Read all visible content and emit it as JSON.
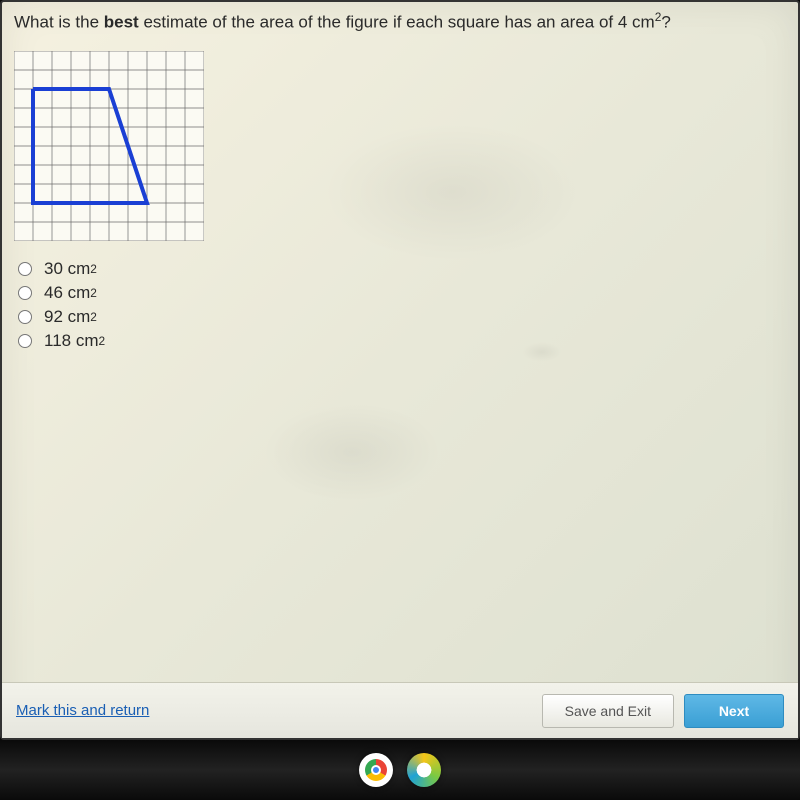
{
  "question": {
    "pre": "What is the ",
    "bold": "best",
    "post": " estimate of the area of the figure if each square has an area of 4 cm",
    "exp": "2",
    "tail": "?"
  },
  "grid": {
    "cols": 10,
    "rows": 10,
    "cell": 19,
    "bg": "#fbfaf3",
    "line_color": "#6b6b6b",
    "line_width": 0.7,
    "shape_color": "#1a3fd4",
    "shape_width": 4,
    "shape_points": [
      [
        1,
        2
      ],
      [
        5,
        2
      ],
      [
        7,
        8
      ],
      [
        1,
        8
      ],
      [
        1,
        2
      ]
    ]
  },
  "options": [
    {
      "label": "30 cm",
      "exp": "2"
    },
    {
      "label": "46 cm",
      "exp": "2"
    },
    {
      "label": "92 cm",
      "exp": "2"
    },
    {
      "label": "118 cm",
      "exp": "2"
    }
  ],
  "footer": {
    "mark": "Mark this and return",
    "save": "Save and Exit",
    "next": "Next"
  }
}
